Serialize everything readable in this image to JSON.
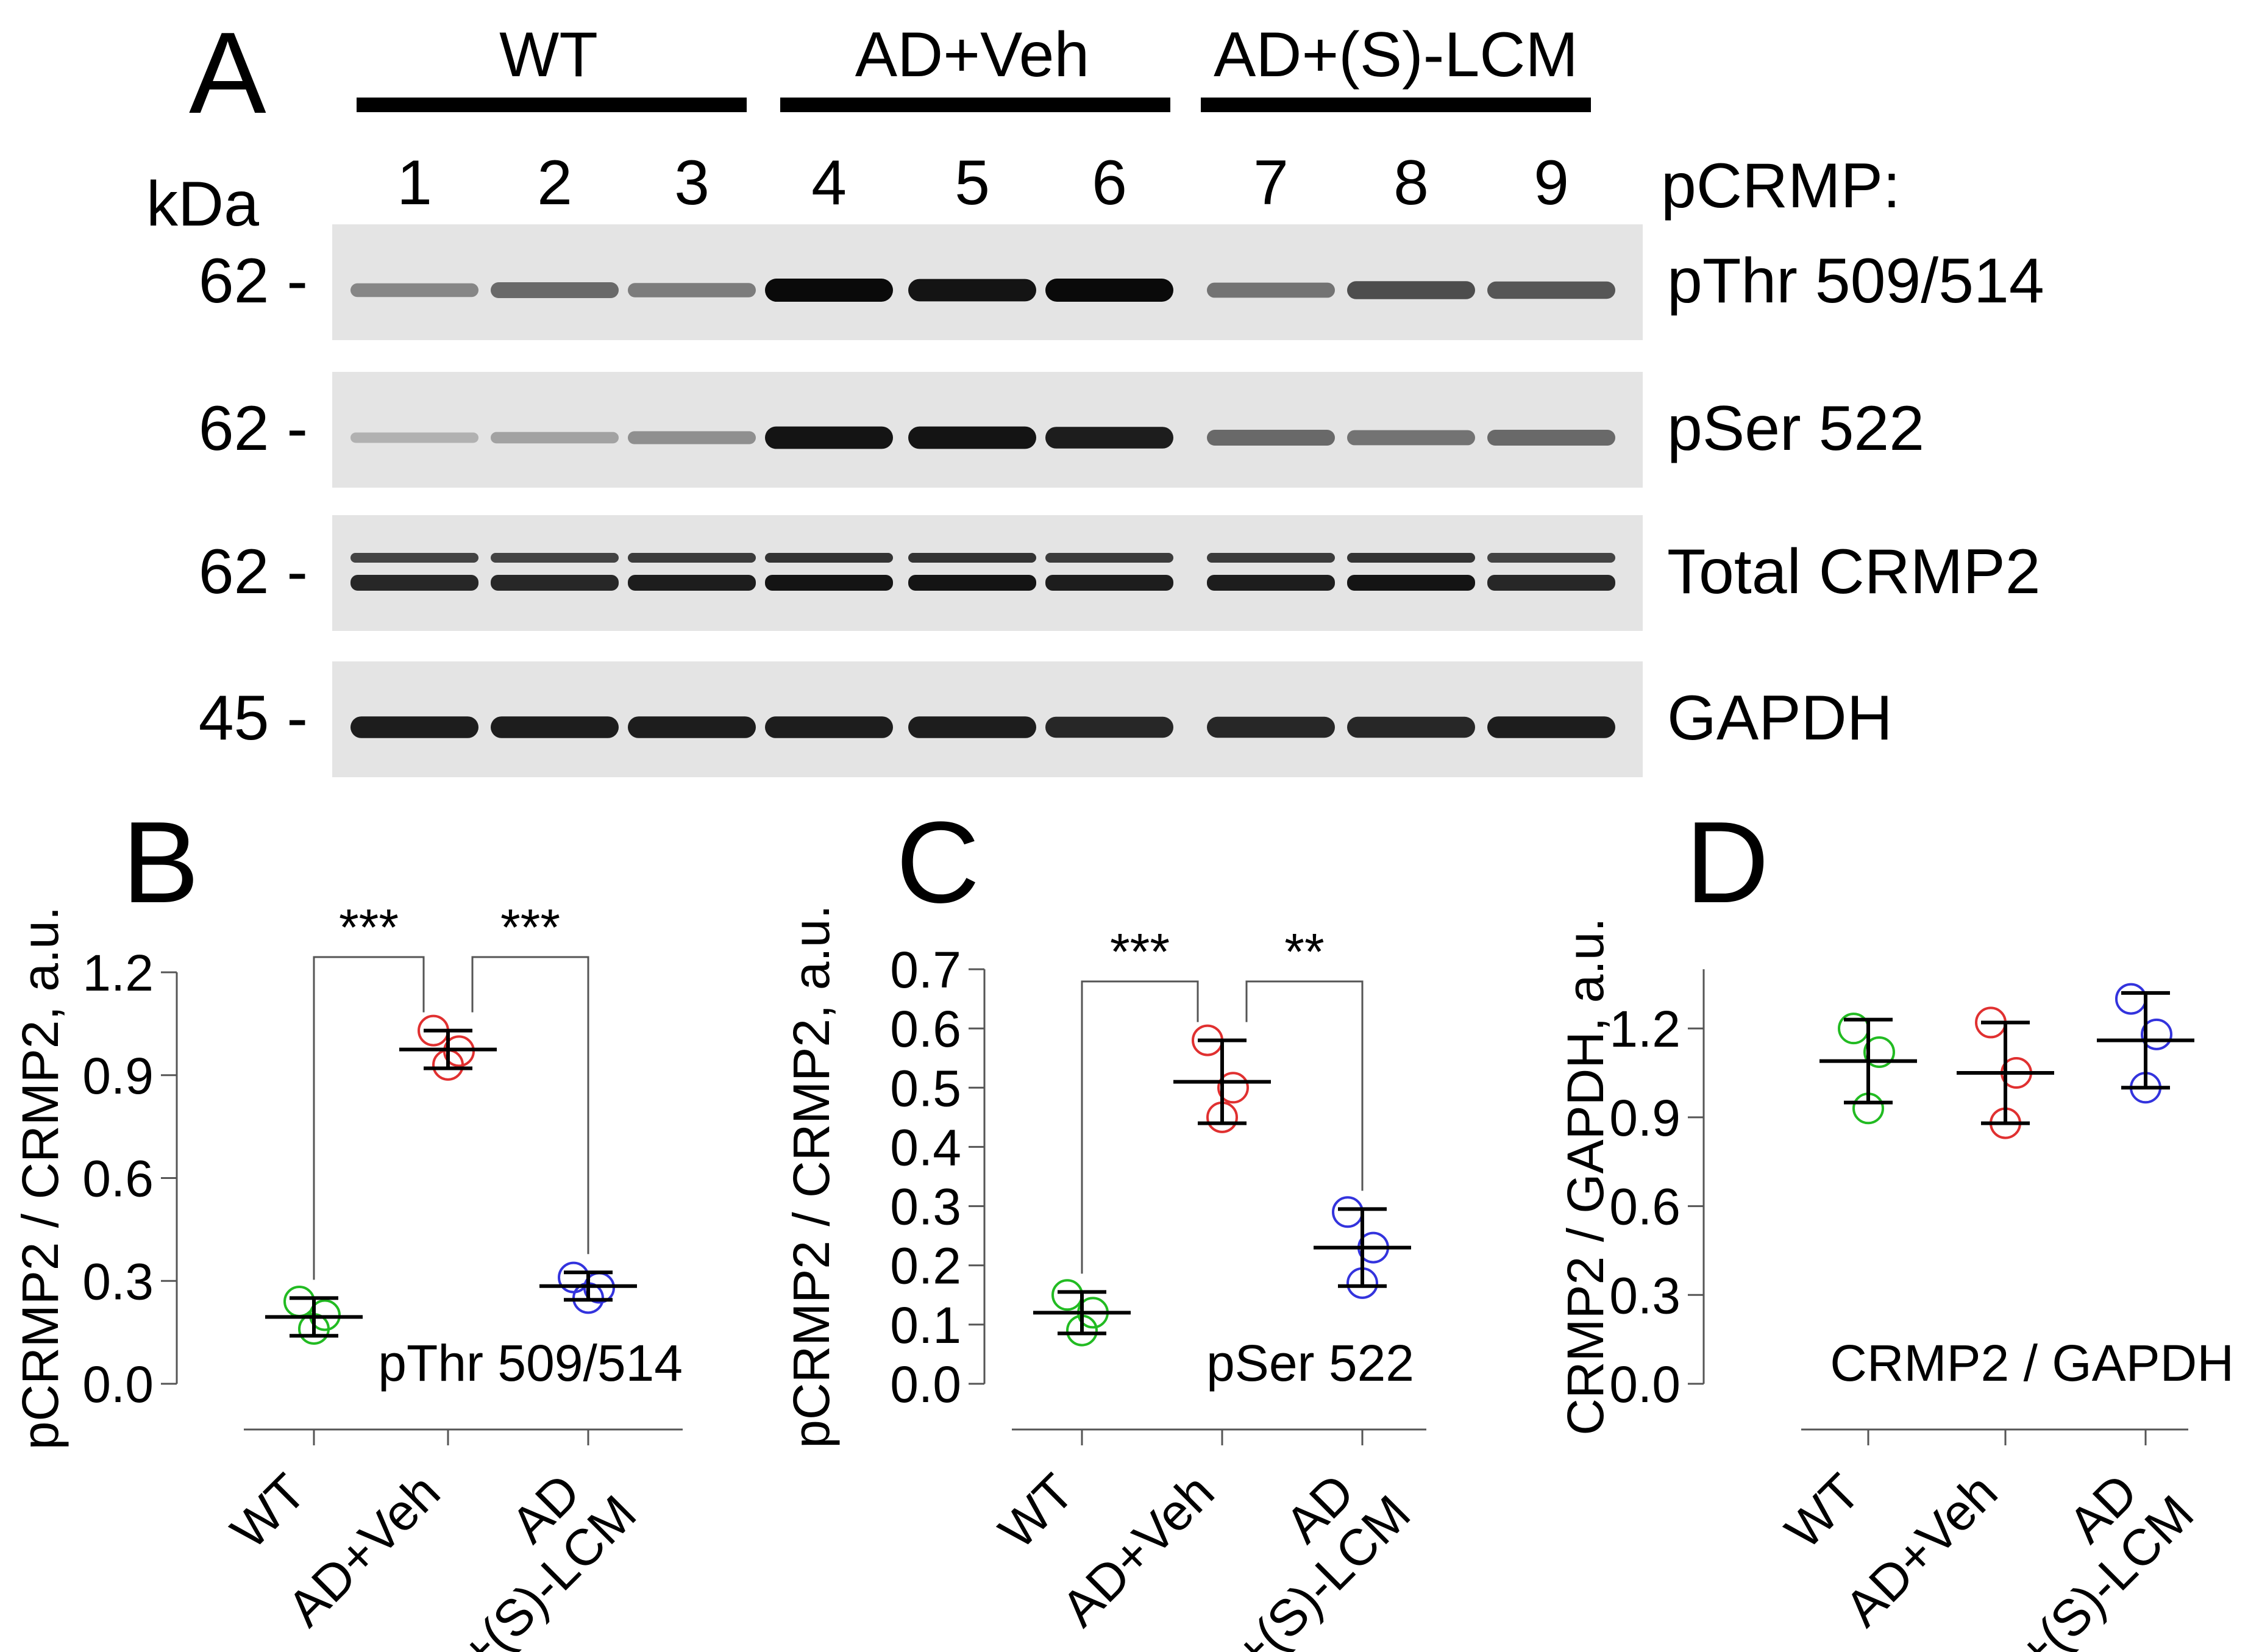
{
  "figure": {
    "panel_a": {
      "letter": "A",
      "kda_label": "kDa",
      "group_labels": [
        "WT",
        "AD+Veh",
        "AD+(S)-LCM"
      ],
      "lane_numbers": [
        "1",
        "2",
        "3",
        "4",
        "5",
        "6",
        "7",
        "8",
        "9"
      ],
      "pcrmp_label": "pCRMP:",
      "blots": [
        {
          "marker": "62 -",
          "label": "pThr 509/514",
          "intensity": [
            0.35,
            0.5,
            0.4,
            1.0,
            0.95,
            1.0,
            0.45,
            0.65,
            0.6
          ],
          "double": false
        },
        {
          "marker": "62 -",
          "label": "pSer 522",
          "intensity": [
            0.12,
            0.2,
            0.3,
            0.95,
            0.95,
            0.9,
            0.5,
            0.45,
            0.5
          ],
          "double": false
        },
        {
          "marker": "62 -",
          "label": "Total CRMP2",
          "intensity": [
            0.85,
            0.85,
            0.9,
            0.95,
            0.95,
            0.9,
            0.9,
            0.95,
            0.85
          ],
          "double": true
        },
        {
          "marker": "45 -",
          "label": "GAPDH",
          "intensity": [
            0.9,
            0.9,
            0.9,
            0.9,
            0.9,
            0.85,
            0.85,
            0.85,
            0.9
          ],
          "double": false
        }
      ]
    },
    "panel_b": {
      "letter": "B"
    },
    "panel_c": {
      "letter": "C"
    },
    "panel_d": {
      "letter": "D"
    },
    "colors": {
      "wt": "#22bb22",
      "veh": "#e03030",
      "lcm": "#3333dd",
      "axis": "#555555"
    }
  },
  "chart_data": [
    {
      "type": "scatter",
      "panel": "B",
      "inset_label": "pThr 509/514",
      "ylabel": "pCRMP2 / CRMP2, a.u.",
      "ylim": [
        0,
        1.2
      ],
      "yticks": [
        "0.0",
        "0.3",
        "0.6",
        "0.9",
        "1.2"
      ],
      "categories": [
        "WT",
        "AD+Veh",
        "AD\n+(S)-LCM"
      ],
      "points": [
        [
          0.24,
          0.2,
          0.16
        ],
        [
          1.03,
          0.97,
          0.93
        ],
        [
          0.31,
          0.28,
          0.25
        ]
      ],
      "mean": [
        0.195,
        0.975,
        0.285
      ],
      "sd": [
        0.055,
        0.055,
        0.04
      ],
      "significance": [
        {
          "from": 0,
          "to": 1,
          "label": "***"
        },
        {
          "from": 1,
          "to": 2,
          "label": "***"
        }
      ]
    },
    {
      "type": "scatter",
      "panel": "C",
      "inset_label": "pSer 522",
      "ylabel": "pCRMP2 / CRMP2, a.u.",
      "ylim": [
        0,
        0.7
      ],
      "yticks": [
        "0.0",
        "0.1",
        "0.2",
        "0.3",
        "0.4",
        "0.5",
        "0.6",
        "0.7"
      ],
      "categories": [
        "WT",
        "AD+Veh",
        "AD\n+(S)-LCM"
      ],
      "points": [
        [
          0.15,
          0.12,
          0.09
        ],
        [
          0.58,
          0.5,
          0.45
        ],
        [
          0.29,
          0.23,
          0.17
        ]
      ],
      "mean": [
        0.12,
        0.51,
        0.23
      ],
      "sd": [
        0.035,
        0.07,
        0.065
      ],
      "significance": [
        {
          "from": 0,
          "to": 1,
          "label": "***"
        },
        {
          "from": 1,
          "to": 2,
          "label": "**"
        }
      ]
    },
    {
      "type": "scatter",
      "panel": "D",
      "inset_label": "CRMP2 / GAPDH",
      "ylabel": "CRMP2 / GAPDH, a.u.",
      "ylim": [
        0,
        1.4
      ],
      "yticks": [
        "0.0",
        "0.3",
        "0.6",
        "0.9",
        "1.2"
      ],
      "categories": [
        "WT",
        "AD+Veh",
        "AD\n+(S)-LCM"
      ],
      "points": [
        [
          1.2,
          1.12,
          0.93
        ],
        [
          1.22,
          1.05,
          0.88
        ],
        [
          1.3,
          1.18,
          1.0
        ]
      ],
      "mean": [
        1.09,
        1.05,
        1.16
      ],
      "sd": [
        0.14,
        0.17,
        0.16
      ],
      "significance": []
    }
  ]
}
